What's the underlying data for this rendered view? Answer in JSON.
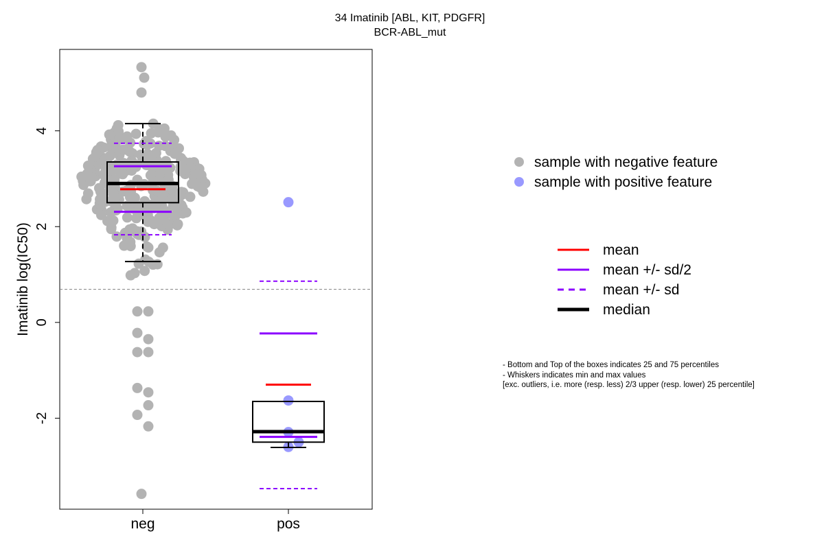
{
  "chart_data": {
    "type": "boxplot",
    "title": "34 Imatinib [ABL, KIT, PDGFR]",
    "subtitle": "BCR-ABL_mut",
    "ylabel": "Imatinib log(IC50)",
    "xlabel": "",
    "categories": [
      "neg",
      "pos"
    ],
    "ylim": [
      -3.9,
      5.7
    ],
    "yticks": [
      -2,
      0,
      2,
      4
    ],
    "threshold_line": 0.69,
    "grid": false,
    "colors": {
      "negative_points": "#b3b3b3",
      "positive_points": "#9999ff",
      "mean": "#ff0000",
      "sd": "#8b00ff",
      "median": "#000000",
      "threshold": "#808080"
    },
    "groups": [
      {
        "category": "neg",
        "feature": "negative",
        "stats": {
          "q1": 2.5,
          "median": 2.9,
          "q3": 3.35,
          "whisker_low": 1.27,
          "whisker_high": 4.15,
          "mean": 2.78,
          "mean_minus_half_sd": 2.31,
          "mean_plus_half_sd": 3.26,
          "mean_minus_sd": 1.83,
          "mean_plus_sd": 3.74
        },
        "outliers": [
          5.33,
          5.11,
          4.8,
          0.23,
          0.23,
          -0.35,
          -0.22,
          -0.62,
          -0.62,
          -1.46,
          -1.37,
          -1.73,
          -1.93,
          -2.17,
          -3.58
        ],
        "points_stats": {
          "cluster_count": 300,
          "cluster_min": 0.88,
          "cluster_max": 4.15
        }
      },
      {
        "category": "pos",
        "feature": "positive",
        "stats": {
          "q1": -2.5,
          "median": -2.28,
          "q3": -1.65,
          "whisker_low": -2.61,
          "whisker_high": -1.65,
          "mean": -1.3,
          "mean_minus_half_sd": -2.39,
          "mean_plus_half_sd": -0.23,
          "mean_minus_sd": -3.47,
          "mean_plus_sd": 0.86
        },
        "points": [
          2.51,
          -1.63,
          -2.29,
          -2.5,
          -2.6
        ]
      }
    ],
    "legend_points": [
      {
        "label": "sample with negative feature",
        "color": "#b3b3b3"
      },
      {
        "label": "sample with positive feature",
        "color": "#9999ff"
      }
    ],
    "legend_lines": [
      {
        "label": "mean",
        "color": "#ff0000",
        "style": "solid"
      },
      {
        "label": "mean +/- sd/2",
        "color": "#8b00ff",
        "style": "solid"
      },
      {
        "label": "mean +/- sd",
        "color": "#8b00ff",
        "style": "dashed"
      },
      {
        "label": "median",
        "color": "#000000",
        "style": "thick"
      }
    ],
    "notes": [
      "- Bottom and Top of the boxes indicates 25 and 75 percentiles",
      "- Whiskers indicates min and max values",
      "[exc. outliers, i.e. more (resp. less) 2/3 upper (resp. lower) 25 percentile]"
    ]
  }
}
